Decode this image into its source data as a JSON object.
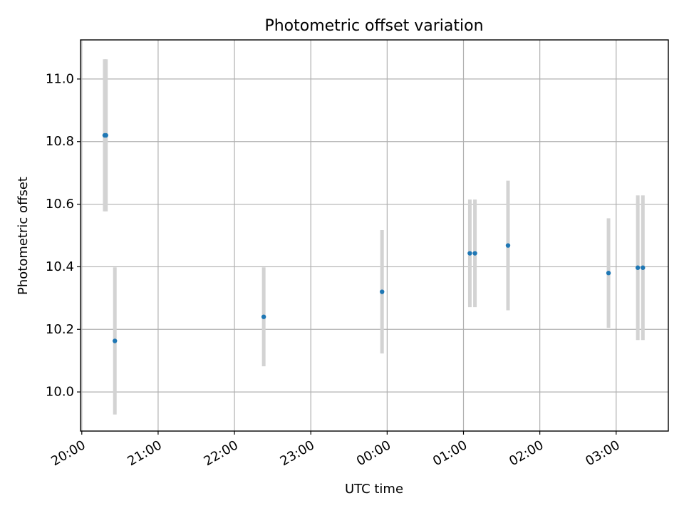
{
  "chart_data": {
    "type": "scatter",
    "title": "Photometric offset variation",
    "xlabel": "UTC time",
    "ylabel": "Photometric offset",
    "x_axis_type": "time",
    "x_ticks": [
      "20:00",
      "21:00",
      "22:00",
      "23:00",
      "00:00",
      "01:00",
      "02:00",
      "03:00"
    ],
    "xlim": [
      "19:59",
      "03:41"
    ],
    "y_ticks": [
      "10.0",
      "10.2",
      "10.4",
      "10.6",
      "10.8",
      "11.0"
    ],
    "ylim": [
      9.875,
      11.125
    ],
    "grid": true,
    "colors": {
      "marker": "#1f77b4",
      "errorbar": "#d3d3d3",
      "grid": "#b0b0b0"
    },
    "series": [
      {
        "points": [
          {
            "x": "20:18",
            "y": 10.82,
            "yerr": 0.243
          },
          {
            "x": "20:19",
            "y": 10.82,
            "yerr": 0.243
          },
          {
            "x": "20:26",
            "y": 10.163,
            "yerr": 0.235
          },
          {
            "x": "22:23",
            "y": 10.24,
            "yerr": 0.158
          },
          {
            "x": "23:56",
            "y": 10.32,
            "yerr": 0.197
          },
          {
            "x": "01:05",
            "y": 10.443,
            "yerr": 0.172
          },
          {
            "x": "01:09",
            "y": 10.443,
            "yerr": 0.172
          },
          {
            "x": "01:35",
            "y": 10.468,
            "yerr": 0.207
          },
          {
            "x": "02:54",
            "y": 10.38,
            "yerr": 0.175
          },
          {
            "x": "03:17",
            "y": 10.397,
            "yerr": 0.231
          },
          {
            "x": "03:21",
            "y": 10.397,
            "yerr": 0.231
          }
        ]
      }
    ]
  }
}
